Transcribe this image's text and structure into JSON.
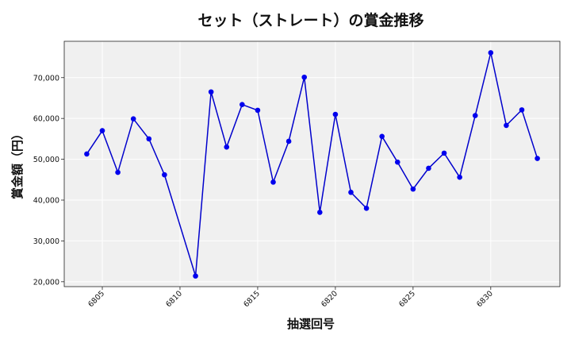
{
  "chart_data": {
    "type": "line",
    "title": "セット（ストレート）の賞金推移",
    "xlabel": "抽選回号",
    "ylabel": "賞金額（円）",
    "xlim": [
      6802.55,
      6834.45
    ],
    "ylim": [
      18800,
      78900
    ],
    "x_ticks": [
      6805,
      6810,
      6815,
      6820,
      6825,
      6830
    ],
    "y_ticks": [
      20000,
      30000,
      40000,
      50000,
      60000,
      70000
    ],
    "y_tick_labels": [
      "20,000",
      "30,000",
      "40,000",
      "50,000",
      "60,000",
      "70,000"
    ],
    "grid": true,
    "line_color": "#0000cc",
    "marker_color": "#0000ee",
    "plot_background": "#f0f0f0",
    "series": [
      {
        "x": [
          6804,
          6805,
          6806,
          6807,
          6808,
          6809,
          6811,
          6812,
          6813,
          6814,
          6815,
          6816,
          6817,
          6818,
          6819,
          6820,
          6821,
          6822,
          6823,
          6824,
          6825,
          6826,
          6827,
          6828,
          6829,
          6830,
          6831,
          6832,
          6833
        ],
        "values": [
          51300,
          57000,
          46800,
          59900,
          55000,
          46200,
          21400,
          66500,
          53000,
          63400,
          62000,
          44400,
          54400,
          70100,
          37000,
          61000,
          41900,
          38000,
          55600,
          49300,
          42700,
          47800,
          51500,
          45600,
          60700,
          76100,
          58300,
          62100,
          50200
        ]
      }
    ]
  }
}
